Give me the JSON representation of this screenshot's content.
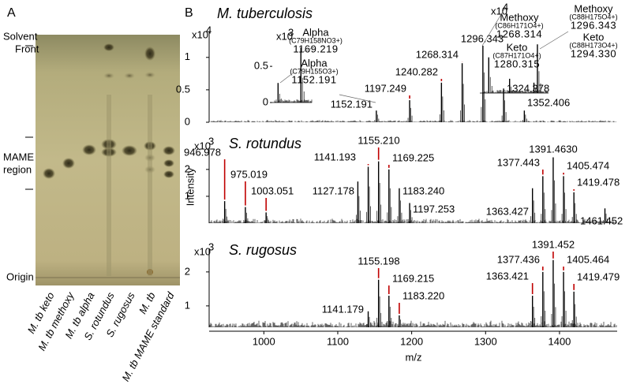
{
  "panel_a": {
    "label": "A",
    "solvent_front": [
      "Solvent",
      "Front"
    ],
    "mame_region": [
      "MAME",
      "region"
    ],
    "origin": "Origin",
    "lanes": [
      "M. tb keto",
      "M. tb methoxy",
      "M. tb alpha",
      "S. rotundus",
      "S. rugosus",
      "M. tb",
      "M. tb MAME standard"
    ]
  },
  "panel_b": {
    "label": "B"
  },
  "chart_data": [
    {
      "type": "spectrum",
      "title": "M. tuberculosis",
      "y_multiplier": {
        "base": "x10",
        "exponent": "4"
      },
      "xlim": [
        926,
        1478
      ],
      "ylim": [
        0,
        1.35
      ],
      "yticks": [
        0,
        0.5,
        1
      ],
      "color": "#000000",
      "label_color": "#c00000",
      "x": [
        1152.191,
        1197.249,
        1240.282,
        1268.314,
        1296.343,
        1324.378,
        1352.406
      ],
      "x_labels": [
        "1152.191",
        "1197.249",
        "1240.282",
        "1268.314",
        "1296.343",
        "1324.378",
        "1352.406"
      ],
      "values": [
        0.18,
        0.34,
        0.61,
        0.91,
        1.18,
        0.52,
        0.18
      ],
      "insets": [
        {
          "y_multiplier": {
            "base": "x10",
            "exponent": "3"
          },
          "ylim": [
            0,
            0.85
          ],
          "yticks": [
            0,
            0.5
          ],
          "x": [
            1152.191,
            1169.219
          ],
          "x_labels": [
            "1152.191",
            "1169.219"
          ],
          "values": [
            0.27,
            0.76
          ],
          "annotations": [
            {
              "name": "Alpha",
              "formula": "(C79H155O3+)"
            },
            {
              "name": "Alpha",
              "formula": "(C79H158NO3+)"
            }
          ]
        },
        {
          "y_multiplier": {
            "base": "x10",
            "exponent": "4"
          },
          "ylim": [
            0,
            0.85
          ],
          "x": [
            1268.314,
            1280.315,
            1294.33,
            1296.343
          ],
          "x_labels": [
            "1268.314",
            "1280.315",
            "1294.330",
            "1296.343"
          ],
          "values": [
            0.55,
            0.22,
            0.16,
            0.75
          ],
          "annotations": [
            {
              "name": "Methoxy",
              "formula": "(C86H171O4+)"
            },
            {
              "name": "Keto",
              "formula": "(C87H171O4+)"
            },
            {
              "name": "Keto",
              "formula": "(C88H173O4+)"
            },
            {
              "name": "Methoxy",
              "formula": "(C88H175O4+)"
            }
          ]
        }
      ]
    },
    {
      "type": "spectrum",
      "title": "S. rotundus",
      "y_label": "Intensity",
      "y_multiplier": {
        "base": "x10",
        "exponent": "3"
      },
      "xlim": [
        926,
        1478
      ],
      "ylim": [
        0,
        2.7
      ],
      "yticks": [
        1,
        2
      ],
      "color": "#000000",
      "label_color": "#c00000",
      "x": [
        946.978,
        975.019,
        1003.051,
        1127.178,
        1141.193,
        1155.21,
        1169.225,
        1183.24,
        1197.253,
        1363.427,
        1377.443,
        1391.463,
        1405.474,
        1419.478,
        1461.452
      ],
      "x_labels": [
        "946.978",
        "975.019",
        "1003.051",
        "1127.178",
        "1141.193",
        "1155.210",
        "1169.225",
        "1183.240",
        "1197.253",
        "1363.427",
        "1377.443",
        "1391.4630",
        "1405.474",
        "1419.478",
        "1461.452"
      ],
      "values": [
        0.82,
        0.6,
        0.4,
        1.55,
        2.1,
        2.3,
        2.0,
        1.3,
        0.75,
        1.3,
        1.75,
        2.45,
        1.75,
        1.15,
        0.55
      ]
    },
    {
      "type": "spectrum",
      "title": "S. rugosus",
      "x_label": "m/z",
      "y_multiplier": {
        "base": "x10",
        "exponent": "3"
      },
      "xlim": [
        926,
        1478
      ],
      "xticks": [
        1000,
        1100,
        1200,
        1300,
        1400
      ],
      "ylim": [
        0.37,
        2.6
      ],
      "yticks": [
        1,
        2
      ],
      "color": "#000000",
      "label_color": "#c00000",
      "x": [
        1141.179,
        1155.198,
        1169.215,
        1183.22,
        1363.421,
        1377.436,
        1391.452,
        1405.464,
        1419.479
      ],
      "x_labels": [
        "1141.179",
        "1155.198",
        "1169.215",
        "1183.220",
        "1363.421",
        "1377.436",
        "1391.452",
        "1405.464",
        "1419.479"
      ],
      "values": [
        0.84,
        1.77,
        1.3,
        0.72,
        1.3,
        2.0,
        2.35,
        2.0,
        1.42
      ]
    }
  ]
}
